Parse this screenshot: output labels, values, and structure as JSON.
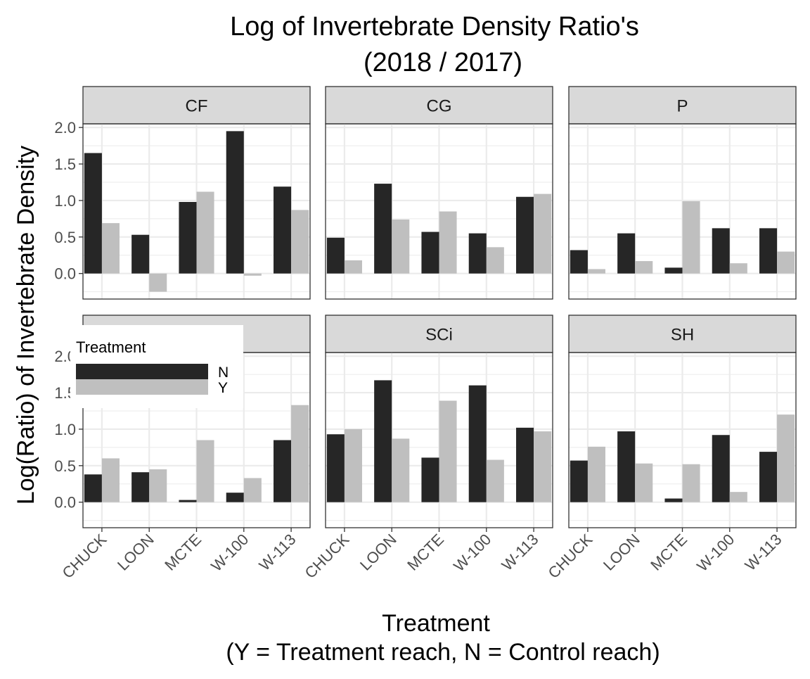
{
  "chart_data": {
    "type": "bar",
    "title": "Log of Invertebrate Density Ratio's",
    "subtitle": "(2018 / 2017)",
    "xlabel": "Treatment",
    "xlabel_sub": "(Y = Treatment reach, N = Control reach)",
    "ylabel": "Log(Ratio) of Invertebrate Density",
    "ylim": [
      -0.35,
      2.05
    ],
    "yticks": [
      "0.0",
      "0.5",
      "1.0",
      "1.5",
      "2.0"
    ],
    "ytick_values": [
      0.0,
      0.5,
      1.0,
      1.5,
      2.0
    ],
    "categories": [
      "CHUCK",
      "LOON",
      "MCTE",
      "W-100",
      "W-113"
    ],
    "grid": true,
    "legend": {
      "title": "Treatment",
      "placement": "inside-left",
      "entries": [
        {
          "label": "N",
          "color": "#262626"
        },
        {
          "label": "Y",
          "color": "#bfbfbf"
        }
      ]
    },
    "panels": [
      {
        "label": "CF",
        "series": [
          {
            "name": "N",
            "values": [
              1.65,
              0.53,
              0.98,
              1.95,
              1.19
            ]
          },
          {
            "name": "Y",
            "values": [
              0.69,
              -0.25,
              1.12,
              -0.03,
              0.87
            ]
          }
        ]
      },
      {
        "label": "CG",
        "series": [
          {
            "name": "N",
            "values": [
              0.49,
              1.23,
              0.57,
              0.55,
              1.05
            ]
          },
          {
            "name": "Y",
            "values": [
              0.18,
              0.74,
              0.85,
              0.36,
              1.09
            ]
          }
        ]
      },
      {
        "label": "P",
        "series": [
          {
            "name": "N",
            "values": [
              0.32,
              0.55,
              0.08,
              0.62,
              0.62
            ]
          },
          {
            "name": "Y",
            "values": [
              0.06,
              0.17,
              0.99,
              0.14,
              0.3
            ]
          }
        ]
      },
      {
        "label": "",
        "series": [
          {
            "name": "N",
            "values": [
              0.38,
              0.41,
              0.03,
              0.13,
              0.85
            ]
          },
          {
            "name": "Y",
            "values": [
              0.6,
              0.45,
              0.85,
              0.33,
              1.33
            ]
          }
        ]
      },
      {
        "label": "SCi",
        "series": [
          {
            "name": "N",
            "values": [
              0.93,
              1.67,
              0.61,
              1.6,
              1.02
            ]
          },
          {
            "name": "Y",
            "values": [
              1.0,
              0.87,
              1.39,
              0.58,
              0.97
            ]
          }
        ]
      },
      {
        "label": "SH",
        "series": [
          {
            "name": "N",
            "values": [
              0.57,
              0.97,
              0.05,
              0.92,
              0.69
            ]
          },
          {
            "name": "Y",
            "values": [
              0.76,
              0.53,
              0.52,
              0.14,
              1.2
            ]
          }
        ]
      }
    ]
  }
}
